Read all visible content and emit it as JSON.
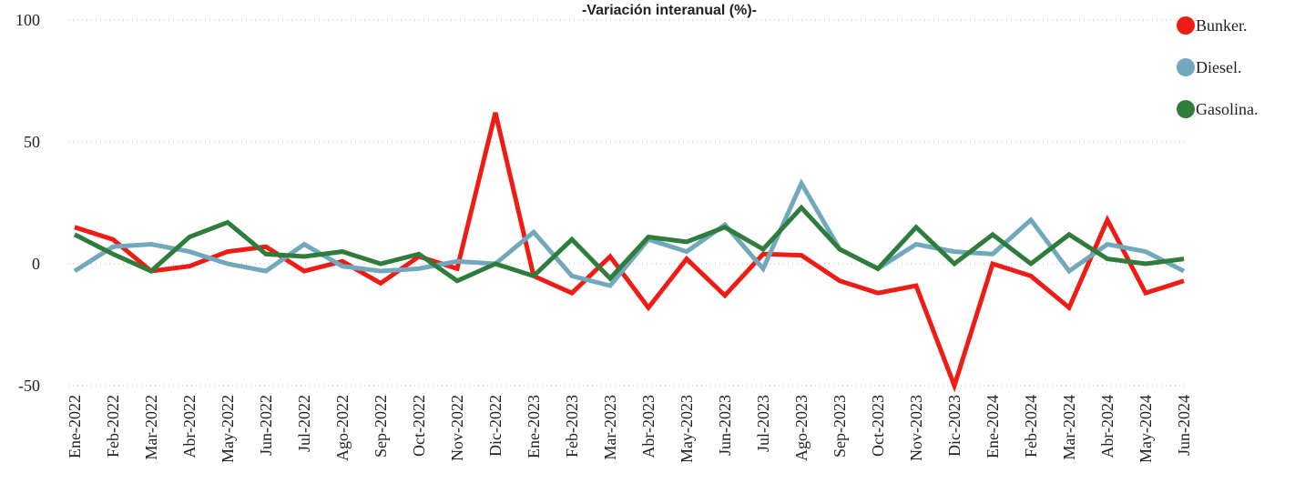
{
  "chart_data": {
    "type": "line",
    "title": "-Variación interanual (%)-",
    "categories": [
      "Ene-2022",
      "Feb-2022",
      "Mar-2022",
      "Abr-2022",
      "May-2022",
      "Jun-2022",
      "Jul-2022",
      "Ago-2022",
      "Sep-2022",
      "Oct-2022",
      "Nov-2022",
      "Dic-2022",
      "Ene-2023",
      "Feb-2023",
      "Mar-2023",
      "Abr-2023",
      "May-2023",
      "Jun-2023",
      "Jul-2023",
      "Ago-2023",
      "Sep-2023",
      "Oct-2023",
      "Nov-2023",
      "Dic-2023",
      "Ene-2024",
      "Feb-2024",
      "Mar-2024",
      "Abr-2024",
      "May-2024",
      "Jun-2024"
    ],
    "series": [
      {
        "name": "Bunker.",
        "color": "#ee1c14",
        "values": [
          15,
          10,
          -3,
          -1,
          5,
          7,
          -3,
          1,
          -8,
          3,
          -2,
          62,
          -5,
          -12,
          3,
          -18,
          2,
          -13,
          4,
          3.5,
          -7,
          -12,
          -9,
          -50,
          0,
          -5,
          -18,
          18,
          -12,
          -7
        ]
      },
      {
        "name": "Diesel.",
        "color": "#72a8bc",
        "values": [
          -3,
          7,
          8,
          5,
          0,
          -3,
          8,
          -1,
          -3,
          -2,
          1,
          0,
          13,
          -5,
          -9,
          10,
          5,
          16,
          -2,
          33,
          6,
          -2,
          8,
          5,
          4,
          18,
          -3,
          8,
          5,
          -3
        ]
      },
      {
        "name": "Gasolina.",
        "color": "#2e7d3c",
        "values": [
          12,
          4,
          -3,
          11,
          17,
          4,
          3,
          5,
          0,
          4,
          -7,
          0,
          -5,
          10,
          -6,
          11,
          9,
          15,
          6,
          23,
          6,
          -2,
          15,
          0,
          12,
          0,
          12,
          2,
          0,
          2
        ]
      }
    ],
    "ylim": [
      -50,
      100
    ],
    "yticks": [
      -50,
      0,
      50,
      100
    ],
    "grid": true
  }
}
